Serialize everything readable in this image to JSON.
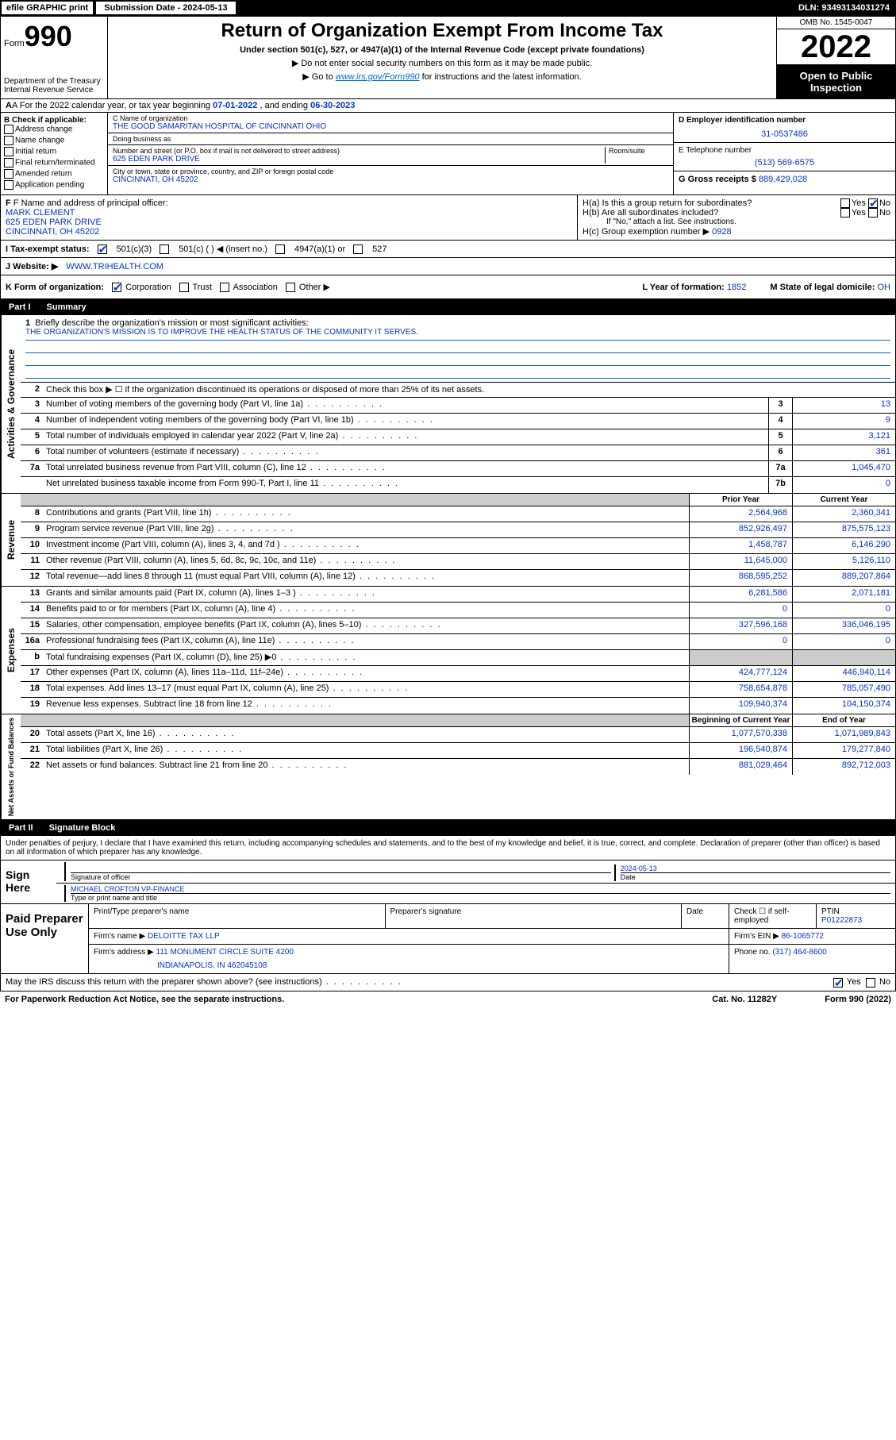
{
  "top": {
    "efile": "efile GRAPHIC print",
    "submission_label": "Submission Date - 2024-05-13",
    "dln": "DLN: 93493134031274"
  },
  "header": {
    "form_label": "Form",
    "form_num": "990",
    "dept": "Department of the Treasury",
    "irs": "Internal Revenue Service",
    "title": "Return of Organization Exempt From Income Tax",
    "subtitle": "Under section 501(c), 527, or 4947(a)(1) of the Internal Revenue Code (except private foundations)",
    "note1": "▶ Do not enter social security numbers on this form as it may be made public.",
    "note2_pre": "▶ Go to ",
    "note2_link": "www.irs.gov/Form990",
    "note2_post": " for instructions and the latest information.",
    "omb": "OMB No. 1545-0047",
    "year": "2022",
    "open": "Open to Public Inspection"
  },
  "row_a": {
    "text_pre": "A For the 2022 calendar year, or tax year beginning ",
    "begin": "07-01-2022",
    "mid": " , and ending ",
    "end": "06-30-2023"
  },
  "col_b": {
    "title": "B Check if applicable:",
    "items": [
      "Address change",
      "Name change",
      "Initial return",
      "Final return/terminated",
      "Amended return",
      "Application pending"
    ]
  },
  "col_c": {
    "name_label": "C Name of organization",
    "name": "THE GOOD SAMARITAN HOSPITAL OF CINCINNATI OHIO",
    "dba_label": "Doing business as",
    "dba": "",
    "addr_label": "Number and street (or P.O. box if mail is not delivered to street address)",
    "room_label": "Room/suite",
    "addr": "625 EDEN PARK DRIVE",
    "city_label": "City or town, state or province, country, and ZIP or foreign postal code",
    "city": "CINCINNATI, OH  45202"
  },
  "col_d": {
    "ein_label": "D Employer identification number",
    "ein": "31-0537486",
    "phone_label": "E Telephone number",
    "phone": "(513) 569-6575",
    "gross_label": "G Gross receipts $",
    "gross": "889,429,028"
  },
  "row_f": {
    "label": "F Name and address of principal officer:",
    "name": "MARK CLEMENT",
    "addr1": "625 EDEN PARK DRIVE",
    "addr2": "CINCINNATI, OH  45202"
  },
  "row_h": {
    "ha_label": "H(a)  Is this a group return for subordinates?",
    "ha_yes": "Yes",
    "ha_no": "No",
    "hb_label": "H(b)  Are all subordinates included?",
    "hb_yes": "Yes",
    "hb_no": "No",
    "hb_note": "If \"No,\" attach a list. See instructions.",
    "hc_label": "H(c)  Group exemption number ▶",
    "hc_val": "0928"
  },
  "row_i": {
    "label": "I   Tax-exempt status:",
    "opt1": "501(c)(3)",
    "opt2": "501(c) (  ) ◀ (insert no.)",
    "opt3": "4947(a)(1) or",
    "opt4": "527"
  },
  "row_j": {
    "label": "J   Website: ▶",
    "val": "WWW.TRIHEALTH.COM"
  },
  "row_k": {
    "label": "K Form of organization:",
    "opts": [
      "Corporation",
      "Trust",
      "Association",
      "Other ▶"
    ],
    "l_label": "L Year of formation:",
    "l_val": "1852",
    "m_label": "M State of legal domicile:",
    "m_val": "OH"
  },
  "part1": {
    "header_pt": "Part I",
    "header_title": "Summary"
  },
  "summary": {
    "q1_label": "Briefly describe the organization's mission or most significant activities:",
    "q1_text": "THE ORGANIZATION'S MISSION IS TO IMPROVE THE HEALTH STATUS OF THE COMMUNITY IT SERVES.",
    "q2_label": "Check this box ▶ ☐  if the organization discontinued its operations or disposed of more than 25% of its net assets.",
    "rows_top": [
      {
        "n": "3",
        "label": "Number of voting members of the governing body (Part VI, line 1a)",
        "box": "3",
        "val": "13"
      },
      {
        "n": "4",
        "label": "Number of independent voting members of the governing body (Part VI, line 1b)",
        "box": "4",
        "val": "9"
      },
      {
        "n": "5",
        "label": "Total number of individuals employed in calendar year 2022 (Part V, line 2a)",
        "box": "5",
        "val": "3,121"
      },
      {
        "n": "6",
        "label": "Total number of volunteers (estimate if necessary)",
        "box": "6",
        "val": "361"
      },
      {
        "n": "7a",
        "label": "Total unrelated business revenue from Part VIII, column (C), line 12",
        "box": "7a",
        "val": "1,045,470"
      },
      {
        "n": "",
        "label": "Net unrelated business taxable income from Form 990-T, Part I, line 11",
        "box": "7b",
        "val": "0"
      }
    ],
    "col_headers": {
      "prior": "Prior Year",
      "current": "Current Year"
    },
    "revenue": [
      {
        "n": "8",
        "label": "Contributions and grants (Part VIII, line 1h)",
        "p": "2,564,968",
        "c": "2,360,341"
      },
      {
        "n": "9",
        "label": "Program service revenue (Part VIII, line 2g)",
        "p": "852,926,497",
        "c": "875,575,123"
      },
      {
        "n": "10",
        "label": "Investment income (Part VIII, column (A), lines 3, 4, and 7d )",
        "p": "1,458,787",
        "c": "6,146,290"
      },
      {
        "n": "11",
        "label": "Other revenue (Part VIII, column (A), lines 5, 6d, 8c, 9c, 10c, and 11e)",
        "p": "11,645,000",
        "c": "5,126,110"
      },
      {
        "n": "12",
        "label": "Total revenue—add lines 8 through 11 (must equal Part VIII, column (A), line 12)",
        "p": "868,595,252",
        "c": "889,207,864"
      }
    ],
    "expenses": [
      {
        "n": "13",
        "label": "Grants and similar amounts paid (Part IX, column (A), lines 1–3 )",
        "p": "6,281,586",
        "c": "2,071,181"
      },
      {
        "n": "14",
        "label": "Benefits paid to or for members (Part IX, column (A), line 4)",
        "p": "0",
        "c": "0"
      },
      {
        "n": "15",
        "label": "Salaries, other compensation, employee benefits (Part IX, column (A), lines 5–10)",
        "p": "327,596,168",
        "c": "336,046,195"
      },
      {
        "n": "16a",
        "label": "Professional fundraising fees (Part IX, column (A), line 11e)",
        "p": "0",
        "c": "0"
      },
      {
        "n": "b",
        "label": "Total fundraising expenses (Part IX, column (D), line 25) ▶0",
        "p": "",
        "c": "",
        "shaded": true
      },
      {
        "n": "17",
        "label": "Other expenses (Part IX, column (A), lines 11a–11d, 11f–24e)",
        "p": "424,777,124",
        "c": "446,940,114"
      },
      {
        "n": "18",
        "label": "Total expenses. Add lines 13–17 (must equal Part IX, column (A), line 25)",
        "p": "758,654,878",
        "c": "785,057,490"
      },
      {
        "n": "19",
        "label": "Revenue less expenses. Subtract line 18 from line 12",
        "p": "109,940,374",
        "c": "104,150,374"
      }
    ],
    "net_headers": {
      "begin": "Beginning of Current Year",
      "end": "End of Year"
    },
    "netassets": [
      {
        "n": "20",
        "label": "Total assets (Part X, line 16)",
        "p": "1,077,570,338",
        "c": "1,071,989,843"
      },
      {
        "n": "21",
        "label": "Total liabilities (Part X, line 26)",
        "p": "196,540,874",
        "c": "179,277,840"
      },
      {
        "n": "22",
        "label": "Net assets or fund balances. Subtract line 21 from line 20",
        "p": "881,029,464",
        "c": "892,712,003"
      }
    ]
  },
  "part2": {
    "header_pt": "Part II",
    "header_title": "Signature Block",
    "intro": "Under penalties of perjury, I declare that I have examined this return, including accompanying schedules and statements, and to the best of my knowledge and belief, it is true, correct, and complete. Declaration of preparer (other than officer) is based on all information of which preparer has any knowledge."
  },
  "sign": {
    "label": "Sign Here",
    "sig_officer": "Signature of officer",
    "date_label": "Date",
    "date_val": "2024-05-13",
    "name": "MICHAEL CROFTON  VP-FINANCE",
    "name_label": "Type or print name and title"
  },
  "paid": {
    "label": "Paid Preparer Use Only",
    "h1": "Print/Type preparer's name",
    "h2": "Preparer's signature",
    "h3": "Date",
    "h4_check": "Check ☐ if self-employed",
    "h5": "PTIN",
    "ptin": "P01222873",
    "firm_name_label": "Firm's name    ▶",
    "firm_name": "DELOITTE TAX LLP",
    "firm_ein_label": "Firm's EIN ▶",
    "firm_ein": "86-1065772",
    "firm_addr_label": "Firm's address ▶",
    "firm_addr1": "111 MONUMENT CIRCLE SUITE 4200",
    "firm_addr2": "INDIANAPOLIS, IN  462045108",
    "phone_label": "Phone no.",
    "phone": "(317) 464-8600"
  },
  "footer": {
    "discuss": "May the IRS discuss this return with the preparer shown above? (see instructions)",
    "yes": "Yes",
    "no": "No",
    "paperwork": "For Paperwork Reduction Act Notice, see the separate instructions.",
    "cat": "Cat. No. 11282Y",
    "form": "Form 990 (2022)"
  },
  "vert_labels": {
    "gov": "Activities & Governance",
    "rev": "Revenue",
    "exp": "Expenses",
    "net": "Net Assets or Fund Balances"
  }
}
